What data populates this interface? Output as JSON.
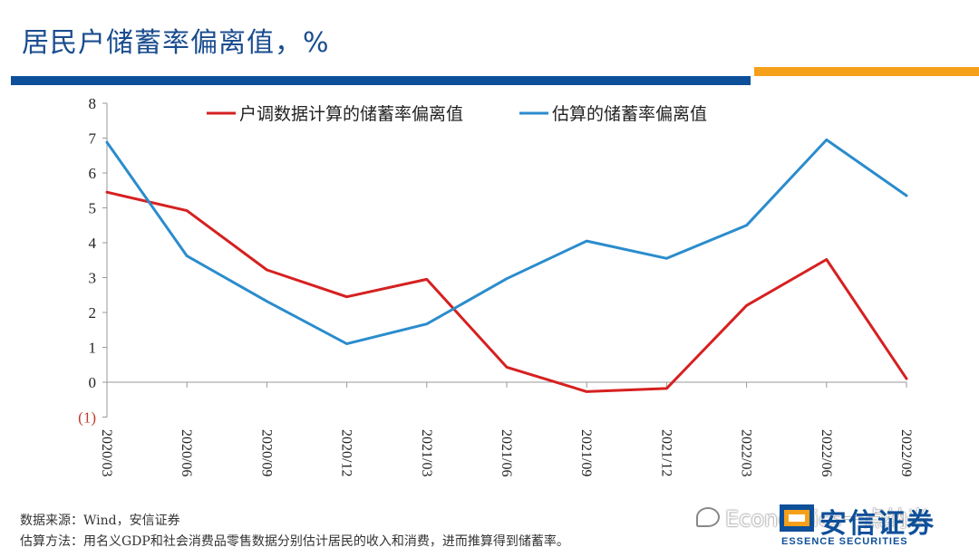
{
  "page": {
    "title": "居民户储蓄率偏离值，%",
    "footnote_source": "数据来源：Wind，安信证券",
    "footnote_method": "估算方法：用名义GDP和社会消费品零售数据分别估计居民的收入和消费，进而推算得到储蓄率。",
    "watermark": "Economics一点纳米",
    "logo_cn": "安信证券",
    "logo_en": "ESSENCE SECURITIES",
    "colors": {
      "title": "#1a4d8f",
      "bar_blue": "#0e4f99",
      "bar_orange": "#f5a01a"
    }
  },
  "chart_data": {
    "type": "line",
    "categories": [
      "2020/03",
      "2020/06",
      "2020/09",
      "2020/12",
      "2021/03",
      "2021/06",
      "2021/09",
      "2021/12",
      "2022/03",
      "2022/06",
      "2022/09"
    ],
    "series": [
      {
        "name": "户调数据计算的储蓄率偏离值",
        "color": "#d62020",
        "values": [
          5.45,
          4.92,
          3.22,
          2.45,
          2.95,
          0.43,
          -0.27,
          -0.18,
          2.2,
          3.52,
          0.1
        ]
      },
      {
        "name": "估算的储蓄率偏离值",
        "color": "#2b8ccd",
        "values": [
          6.88,
          3.62,
          2.32,
          1.1,
          1.67,
          2.97,
          4.05,
          3.55,
          4.5,
          6.95,
          5.35
        ]
      }
    ],
    "yticks": [
      "8",
      "7",
      "6",
      "5",
      "4",
      "3",
      "2",
      "1",
      "0",
      "(1)"
    ],
    "ylim": [
      -1,
      8
    ],
    "grid": false,
    "legend": "top"
  }
}
